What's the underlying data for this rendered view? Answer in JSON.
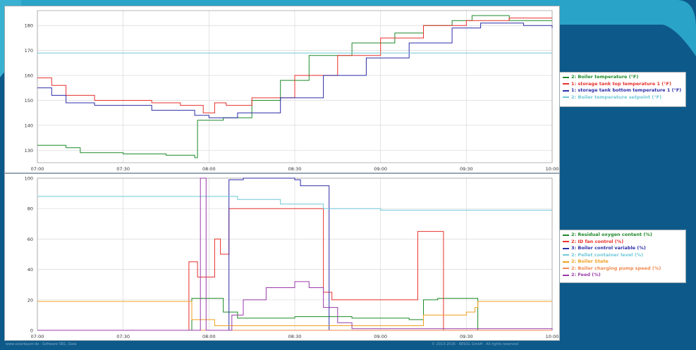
{
  "colors": {
    "background": "#0d5a8a",
    "accent": "#2aa3c8",
    "grid": "#d8d8d8"
  },
  "chart_data": [
    {
      "type": "line",
      "x": [
        "07:00",
        "07:30",
        "08:00",
        "08:30",
        "09:00",
        "09:30",
        "10:00"
      ],
      "xlim": [
        "07:00",
        "10:00"
      ],
      "ylim": [
        125,
        186
      ],
      "yticks": [
        "130",
        "140",
        "150",
        "160",
        "170",
        "180"
      ],
      "grid": true,
      "legend": "right",
      "series": [
        {
          "name": "2: Boiler temperature (°F)",
          "color": "#1e8a28",
          "points": [
            [
              "07:00",
              132
            ],
            [
              "07:10",
              131
            ],
            [
              "07:15",
              129
            ],
            [
              "07:30",
              128.5
            ],
            [
              "07:45",
              128
            ],
            [
              "07:55",
              127
            ],
            [
              "07:56",
              142
            ],
            [
              "08:05",
              143
            ],
            [
              "08:15",
              150
            ],
            [
              "08:25",
              158
            ],
            [
              "08:35",
              168
            ],
            [
              "08:50",
              173
            ],
            [
              "09:05",
              177
            ],
            [
              "09:15",
              180
            ],
            [
              "09:25",
              182
            ],
            [
              "09:32",
              184
            ],
            [
              "09:45",
              182
            ],
            [
              "10:00",
              182
            ]
          ]
        },
        {
          "name": "1: storage tank top temperature 1 (°F)",
          "color": "#e8302c",
          "points": [
            [
              "07:00",
              159
            ],
            [
              "07:05",
              156
            ],
            [
              "07:10",
              152
            ],
            [
              "07:20",
              150
            ],
            [
              "07:40",
              149
            ],
            [
              "07:50",
              148
            ],
            [
              "07:58",
              145
            ],
            [
              "08:02",
              149
            ],
            [
              "08:06",
              148
            ],
            [
              "08:15",
              151
            ],
            [
              "08:30",
              160
            ],
            [
              "08:45",
              168
            ],
            [
              "09:00",
              175
            ],
            [
              "09:15",
              180
            ],
            [
              "09:30",
              182
            ],
            [
              "09:45",
              183
            ],
            [
              "10:00",
              183
            ]
          ]
        },
        {
          "name": "1: storage tank bottom temperature 1 (°F)",
          "color": "#2c2ca8",
          "points": [
            [
              "07:00",
              155
            ],
            [
              "07:05",
              152
            ],
            [
              "07:10",
              149
            ],
            [
              "07:20",
              148
            ],
            [
              "07:40",
              146
            ],
            [
              "07:55",
              144
            ],
            [
              "08:00",
              143
            ],
            [
              "08:10",
              145
            ],
            [
              "08:25",
              151
            ],
            [
              "08:40",
              160
            ],
            [
              "08:55",
              167
            ],
            [
              "09:10",
              173
            ],
            [
              "09:25",
              179
            ],
            [
              "09:35",
              181
            ],
            [
              "09:50",
              180
            ],
            [
              "10:00",
              179
            ]
          ]
        },
        {
          "name": "2: Boiler temperature setpoint (°F)",
          "color": "#6fc8d8",
          "points": [
            [
              "07:00",
              169
            ],
            [
              "10:00",
              169
            ]
          ]
        }
      ]
    },
    {
      "type": "line",
      "x": [
        "07:00",
        "07:30",
        "08:00",
        "08:30",
        "09:00",
        "09:30",
        "10:00"
      ],
      "xlim": [
        "07:00",
        "10:00"
      ],
      "ylim": [
        0,
        100
      ],
      "yticks": [
        "0",
        "20",
        "40",
        "60",
        "80",
        "100"
      ],
      "grid": true,
      "legend": "right",
      "series": [
        {
          "name": "2: Residual oxygen content (%)",
          "color": "#1e8a28",
          "points": [
            [
              "07:00",
              0
            ],
            [
              "07:54",
              0
            ],
            [
              "07:54",
              21
            ],
            [
              "08:02",
              21
            ],
            [
              "08:05",
              12
            ],
            [
              "08:10",
              8
            ],
            [
              "08:30",
              9
            ],
            [
              "08:50",
              8
            ],
            [
              "09:10",
              7
            ],
            [
              "09:13",
              7
            ],
            [
              "09:15",
              20
            ],
            [
              "09:20",
              21
            ],
            [
              "09:34",
              21
            ],
            [
              "09:34",
              0
            ],
            [
              "10:00",
              0
            ]
          ]
        },
        {
          "name": "2: ID fan control (%)",
          "color": "#e8302c",
          "points": [
            [
              "07:00",
              0
            ],
            [
              "07:53",
              0
            ],
            [
              "07:53",
              45
            ],
            [
              "07:56",
              45
            ],
            [
              "07:56",
              35
            ],
            [
              "08:02",
              35
            ],
            [
              "08:02",
              60
            ],
            [
              "08:04",
              60
            ],
            [
              "08:04",
              50
            ],
            [
              "08:07",
              80
            ],
            [
              "08:28",
              80
            ],
            [
              "08:40",
              25
            ],
            [
              "08:43",
              20
            ],
            [
              "09:13",
              20
            ],
            [
              "09:13",
              65
            ],
            [
              "09:22",
              65
            ],
            [
              "09:22",
              0
            ],
            [
              "10:00",
              0
            ]
          ]
        },
        {
          "name": "3: Boiler control variable (%)",
          "color": "#2c2ca8",
          "points": [
            [
              "07:00",
              0
            ],
            [
              "08:05",
              0
            ],
            [
              "08:07",
              99
            ],
            [
              "08:12",
              100
            ],
            [
              "08:30",
              99
            ],
            [
              "08:32",
              95
            ],
            [
              "08:42",
              0
            ],
            [
              "10:00",
              0
            ]
          ]
        },
        {
          "name": "2: Pellet container level (%)",
          "color": "#6fc8d8",
          "points": [
            [
              "07:00",
              88
            ],
            [
              "08:00",
              88
            ],
            [
              "08:10",
              86
            ],
            [
              "08:25",
              83
            ],
            [
              "08:40",
              80
            ],
            [
              "09:00",
              79
            ],
            [
              "10:00",
              79
            ]
          ]
        },
        {
          "name": "2: Boiler State",
          "color": "#f0a020",
          "points": [
            [
              "07:00",
              19
            ],
            [
              "07:54",
              19
            ],
            [
              "07:54",
              7
            ],
            [
              "08:02",
              7
            ],
            [
              "08:02",
              3
            ],
            [
              "08:45",
              3
            ],
            [
              "09:10",
              3
            ],
            [
              "09:15",
              10
            ],
            [
              "09:30",
              12
            ],
            [
              "09:33",
              15
            ],
            [
              "09:34",
              19
            ],
            [
              "10:00",
              19
            ]
          ]
        },
        {
          "name": "2: Boiler charging pump speed (%)",
          "color": "#f08a50",
          "points": [
            [
              "07:00",
              0
            ],
            [
              "09:34",
              0
            ],
            [
              "10:00",
              0
            ]
          ]
        },
        {
          "name": "2: Feed (%)",
          "color": "#9a3aa8",
          "points": [
            [
              "07:00",
              0
            ],
            [
              "07:57",
              0
            ],
            [
              "07:57",
              100
            ],
            [
              "07:59",
              100
            ],
            [
              "07:59",
              0
            ],
            [
              "08:06",
              0
            ],
            [
              "08:08",
              10
            ],
            [
              "08:12",
              20
            ],
            [
              "08:20",
              28
            ],
            [
              "08:30",
              32
            ],
            [
              "08:35",
              28
            ],
            [
              "08:40",
              15
            ],
            [
              "08:45",
              5
            ],
            [
              "08:50",
              1
            ],
            [
              "10:00",
              0
            ]
          ]
        }
      ]
    }
  ],
  "footer": {
    "left": "www.solarbayer.de · Software SB1, Data",
    "right": "© 2013-2016 · RESOL GmbH · All rights reserved"
  }
}
